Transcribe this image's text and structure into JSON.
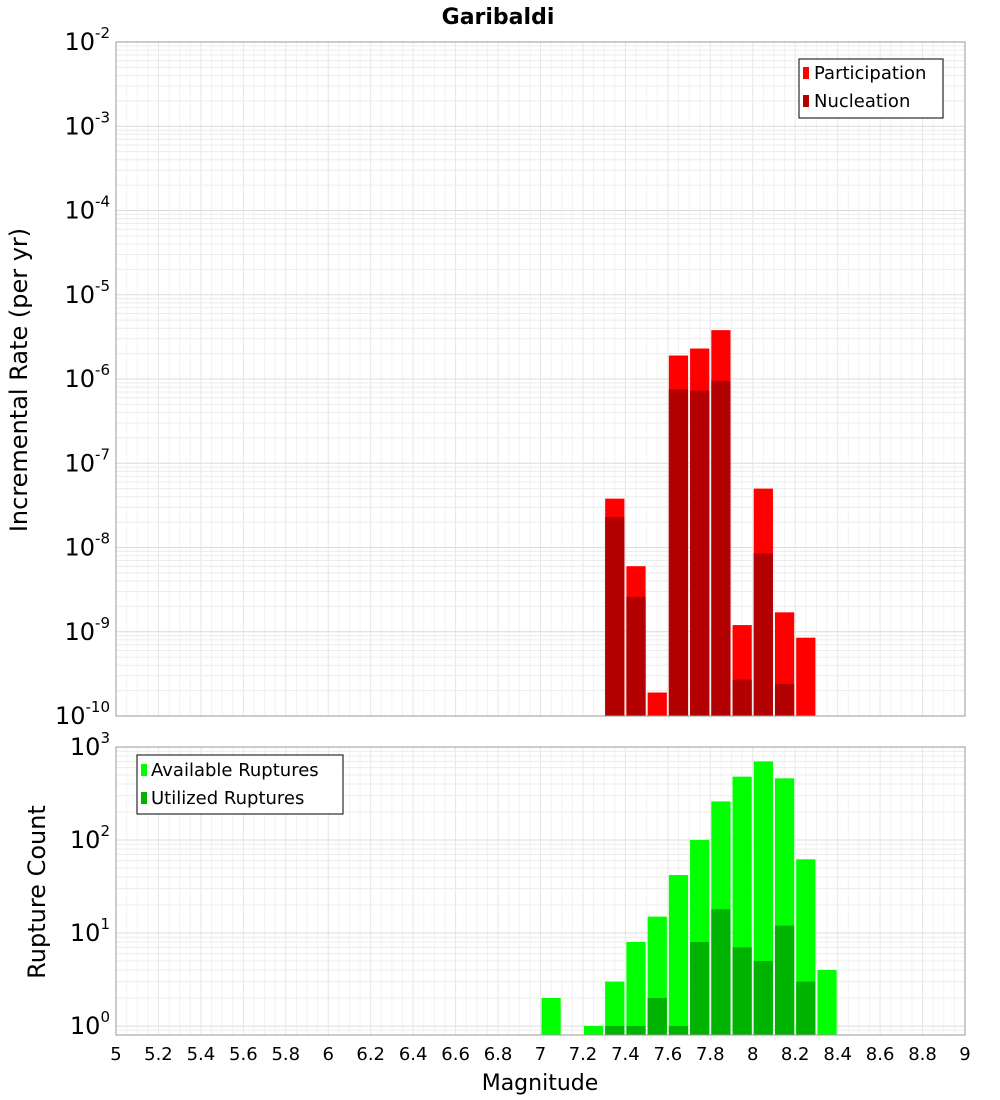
{
  "chart_data": [
    {
      "type": "bar",
      "panel": "top",
      "title": "Garibaldi",
      "xlabel": "Magnitude",
      "ylabel": "Incremental Rate (per yr)",
      "yscale": "log",
      "ylim": [
        1e-10,
        0.01
      ],
      "xlim": [
        5,
        9
      ],
      "y_ticks": [
        {
          "base": "10",
          "exp": "-10"
        },
        {
          "base": "10",
          "exp": "-9"
        },
        {
          "base": "10",
          "exp": "-8"
        },
        {
          "base": "10",
          "exp": "-7"
        },
        {
          "base": "10",
          "exp": "-6"
        },
        {
          "base": "10",
          "exp": "-5"
        },
        {
          "base": "10",
          "exp": "-4"
        },
        {
          "base": "10",
          "exp": "-3"
        },
        {
          "base": "10",
          "exp": "-2"
        }
      ],
      "bin_width": 0.1,
      "legend_position": "top-right",
      "series": [
        {
          "name": "Participation",
          "color": "#ff0000",
          "x": [
            7.35,
            7.45,
            7.55,
            7.65,
            7.75,
            7.85,
            7.95,
            8.05,
            8.15,
            8.25
          ],
          "values": [
            3.8e-08,
            6e-09,
            1.9e-10,
            1.9e-06,
            2.3e-06,
            3.8e-06,
            1.2e-09,
            5e-08,
            1.7e-09,
            8.5e-10
          ]
        },
        {
          "name": "Nucleation",
          "color": "#b30000",
          "x": [
            7.35,
            7.45,
            7.55,
            7.65,
            7.75,
            7.85,
            7.95,
            8.05,
            8.15,
            8.25
          ],
          "values": [
            2.3e-08,
            2.6e-09,
            null,
            7.5e-07,
            7.3e-07,
            9.5e-07,
            2.7e-10,
            8.5e-09,
            2.4e-10,
            null
          ]
        }
      ]
    },
    {
      "type": "bar",
      "panel": "bottom",
      "xlabel": "Magnitude",
      "ylabel": "Rupture Count",
      "yscale": "log",
      "ylim": [
        0.8,
        1000
      ],
      "xlim": [
        5,
        9
      ],
      "x_ticks": [
        "5",
        "5.2",
        "5.4",
        "5.6",
        "5.8",
        "6",
        "6.2",
        "6.4",
        "6.6",
        "6.8",
        "7",
        "7.2",
        "7.4",
        "7.6",
        "7.8",
        "8",
        "8.2",
        "8.4",
        "8.6",
        "8.8",
        "9"
      ],
      "y_ticks": [
        {
          "value": 1,
          "base": "10",
          "exp": "0"
        },
        {
          "value": 10,
          "base": "10",
          "exp": "1"
        },
        {
          "value": 100,
          "base": "10",
          "exp": "2"
        },
        {
          "value": 1000,
          "base": "10",
          "exp": "3"
        }
      ],
      "bin_width": 0.1,
      "legend_position": "top-left",
      "series": [
        {
          "name": "Available Ruptures",
          "color": "#00ff00",
          "x": [
            7.05,
            7.25,
            7.35,
            7.45,
            7.55,
            7.65,
            7.75,
            7.85,
            7.95,
            8.05,
            8.15,
            8.25,
            8.35
          ],
          "values": [
            2,
            1,
            3,
            8,
            15,
            42,
            100,
            260,
            480,
            700,
            460,
            62,
            4
          ]
        },
        {
          "name": "Utilized Ruptures",
          "color": "#00b300",
          "x": [
            7.35,
            7.45,
            7.55,
            7.65,
            7.75,
            7.85,
            7.95,
            8.05,
            8.15,
            8.25
          ],
          "values": [
            1,
            1,
            2,
            1,
            8,
            18,
            7,
            5,
            12,
            3
          ]
        }
      ]
    }
  ]
}
